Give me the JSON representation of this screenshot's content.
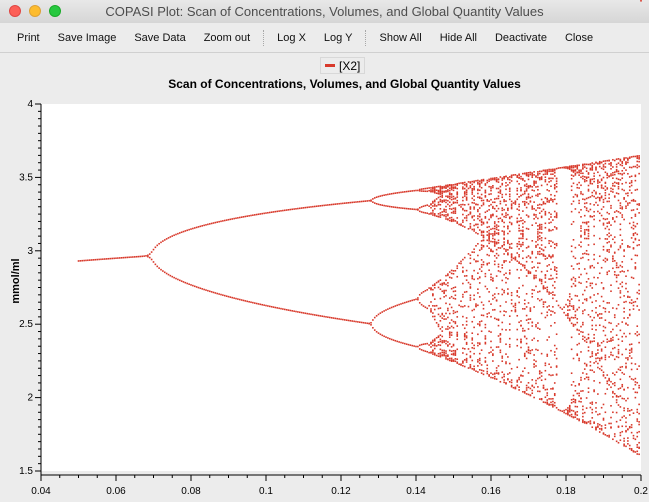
{
  "window": {
    "title": "COPASI Plot: Scan of Concentrations, Volumes, and Global Quantity Values"
  },
  "toolbar": {
    "print": "Print",
    "save_image": "Save Image",
    "save_data": "Save Data",
    "zoom_out": "Zoom out",
    "log_x": "Log X",
    "log_y": "Log Y",
    "show_all": "Show All",
    "hide_all": "Hide All",
    "deactivate": "Deactivate",
    "close": "Close"
  },
  "chart_data": {
    "type": "scatter",
    "title": "Scan of Concentrations, Volumes, and Global Quantity Values",
    "xlabel": "",
    "ylabel": "mmol/ml",
    "xlim": [
      0.04,
      0.2
    ],
    "ylim": [
      1.5,
      4
    ],
    "x_ticks": [
      "0.04",
      "0.06",
      "0.08",
      "0.1",
      "0.12",
      "0.14",
      "0.16",
      "0.18",
      "0.2"
    ],
    "y_ticks": [
      "1.5",
      "2",
      "2.5",
      "3",
      "3.5",
      "4"
    ],
    "legend_position": "top-center",
    "grid": false,
    "series": [
      {
        "name": "[X2]",
        "color": "#d8392b",
        "x_range": [
          0.05,
          0.2
        ],
        "x_step": 0.0005,
        "description_bifurcation": true
      }
    ]
  }
}
